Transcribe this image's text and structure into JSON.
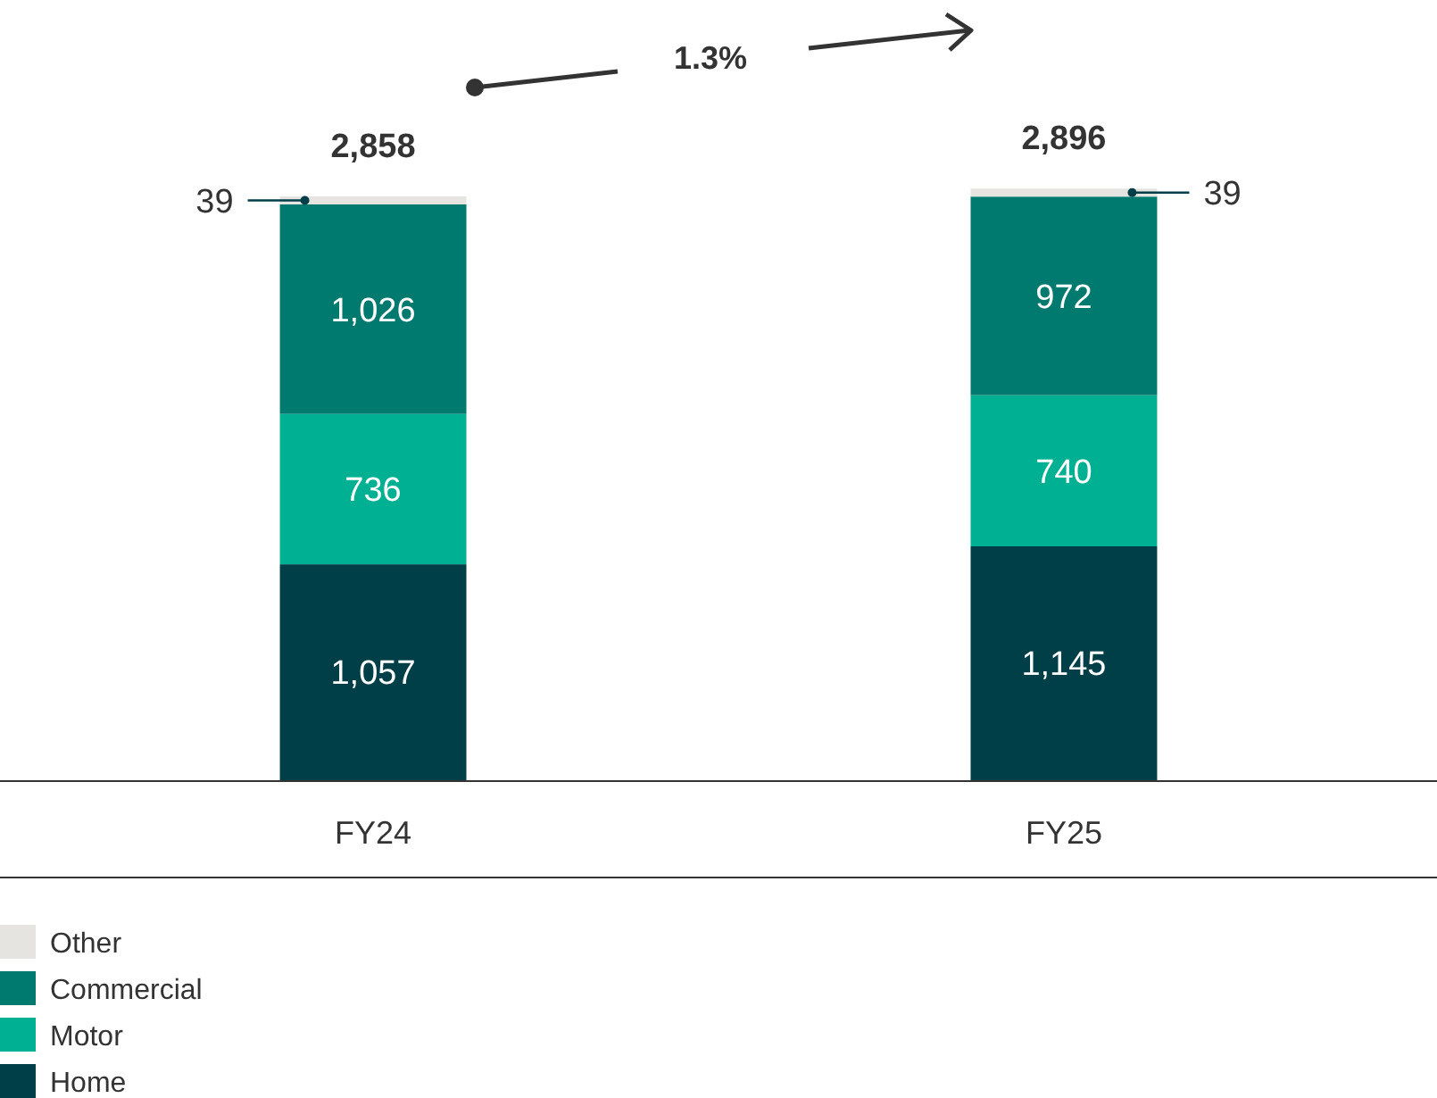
{
  "chart_data": {
    "type": "bar",
    "stacked": true,
    "categories": [
      "FY24",
      "FY25"
    ],
    "series": [
      {
        "name": "Home",
        "color": "#003f48",
        "values": [
          1057,
          1145
        ],
        "value_labels": [
          "1,057",
          "1,145"
        ]
      },
      {
        "name": "Motor",
        "color": "#00b092",
        "values": [
          736,
          740
        ],
        "value_labels": [
          "736",
          "740"
        ]
      },
      {
        "name": "Commercial",
        "color": "#007a6e",
        "values": [
          1026,
          972
        ],
        "value_labels": [
          "1,026",
          "972"
        ]
      },
      {
        "name": "Other",
        "color": "#e6e4e0",
        "values": [
          39,
          39
        ],
        "value_labels": [
          "39",
          "39"
        ]
      }
    ],
    "totals": [
      "2,858",
      "2,896"
    ],
    "annotations": [
      "1.3%"
    ],
    "legend": "bottom left"
  }
}
